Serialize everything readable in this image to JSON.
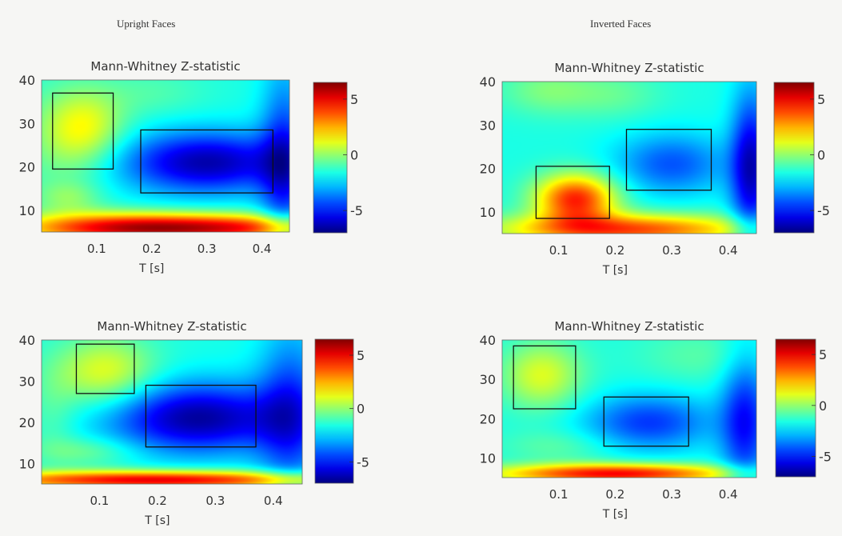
{
  "columns": [
    {
      "title": "Upright Faces"
    },
    {
      "title": "Inverted Faces"
    }
  ],
  "chart_data": [
    {
      "type": "heatmap",
      "panel": "upright-top",
      "title": "Mann-Whitney Z-statistic",
      "xlabel": "T [s]",
      "ylabel": "",
      "xlim": [
        0.0,
        0.45
      ],
      "ylim": [
        5,
        40
      ],
      "xticks": [
        0.1,
        0.2,
        0.3,
        0.4
      ],
      "xtick_labels": [
        "0.1",
        "0.2",
        "0.3",
        "0.4"
      ],
      "yticks": [
        10,
        20,
        30,
        40
      ],
      "ytick_labels": [
        "10",
        "20",
        "30",
        "40"
      ],
      "colorbar": {
        "range": [
          -7,
          6.5
        ],
        "ticks": [
          5,
          0,
          -5
        ],
        "tick_labels": [
          "5",
          "0",
          "-5"
        ]
      },
      "rois": [
        {
          "t0": 0.02,
          "t1": 0.13,
          "f0": 19.5,
          "f1": 37
        },
        {
          "t0": 0.18,
          "t1": 0.42,
          "f0": 14,
          "f1": 28.5
        }
      ],
      "blobs": [
        {
          "t": 0.08,
          "f": 29,
          "st": 0.05,
          "sf": 6,
          "a": 2.5
        },
        {
          "t": 0.03,
          "f": 25,
          "st": 0.06,
          "sf": 10,
          "a": 1.0
        },
        {
          "t": 0.3,
          "f": 21,
          "st": 0.11,
          "sf": 5,
          "a": -4.8
        },
        {
          "t": 0.44,
          "f": 20,
          "st": 0.03,
          "sf": 15,
          "a": -3.2
        },
        {
          "t": 0.05,
          "f": 13,
          "st": 0.04,
          "sf": 2.5,
          "a": 1.2
        },
        {
          "t": 0.15,
          "f": 6,
          "st": 0.14,
          "sf": 2.4,
          "a": 6.5
        },
        {
          "t": 0.38,
          "f": 6,
          "st": 0.13,
          "sf": 2.2,
          "a": 4.5
        },
        {
          "t": 0.2,
          "f": 37,
          "st": 0.07,
          "sf": 4,
          "a": 0.7
        }
      ]
    },
    {
      "type": "heatmap",
      "panel": "inverted-top",
      "title": "Mann-Whitney Z-statistic",
      "xlabel": "T [s]",
      "ylabel": "",
      "xlim": [
        0.0,
        0.45
      ],
      "ylim": [
        5,
        40
      ],
      "xticks": [
        0.1,
        0.2,
        0.3,
        0.4
      ],
      "xtick_labels": [
        "0.1",
        "0.2",
        "0.3",
        "0.4"
      ],
      "yticks": [
        10,
        20,
        30,
        40
      ],
      "ytick_labels": [
        "10",
        "20",
        "30",
        "40"
      ],
      "colorbar": {
        "range": [
          -7,
          6.5
        ],
        "ticks": [
          5,
          0,
          -5
        ],
        "tick_labels": [
          "5",
          "0",
          "-5"
        ]
      },
      "rois": [
        {
          "t0": 0.06,
          "t1": 0.19,
          "f0": 8.5,
          "f1": 20.5
        },
        {
          "t0": 0.22,
          "t1": 0.37,
          "f0": 15,
          "f1": 29
        }
      ],
      "blobs": [
        {
          "t": 0.13,
          "f": 13,
          "st": 0.05,
          "sf": 4,
          "a": 6.0
        },
        {
          "t": 0.22,
          "f": 6,
          "st": 0.16,
          "sf": 2.5,
          "a": 5.5
        },
        {
          "t": 0.3,
          "f": 21,
          "st": 0.07,
          "sf": 5,
          "a": -2.6
        },
        {
          "t": 0.44,
          "f": 20,
          "st": 0.025,
          "sf": 12,
          "a": -4.5
        },
        {
          "t": 0.08,
          "f": 38,
          "st": 0.06,
          "sf": 4,
          "a": 1.3
        },
        {
          "t": 0.2,
          "f": 37,
          "st": 0.06,
          "sf": 4,
          "a": 0.9
        }
      ]
    },
    {
      "type": "heatmap",
      "panel": "upright-bottom",
      "title": "Mann-Whitney Z-statistic",
      "xlabel": "T [s]",
      "ylabel": "",
      "xlim": [
        0.0,
        0.45
      ],
      "ylim": [
        5,
        40
      ],
      "xticks": [
        0.1,
        0.2,
        0.3,
        0.4
      ],
      "xtick_labels": [
        "0.1",
        "0.2",
        "0.3",
        "0.4"
      ],
      "yticks": [
        10,
        20,
        30,
        40
      ],
      "ytick_labels": [
        "10",
        "20",
        "30",
        "40"
      ],
      "colorbar": {
        "range": [
          -7,
          6.5
        ],
        "ticks": [
          5,
          0,
          -5
        ],
        "tick_labels": [
          "5",
          "0",
          "-5"
        ]
      },
      "rois": [
        {
          "t0": 0.06,
          "t1": 0.16,
          "f0": 27,
          "f1": 39
        },
        {
          "t0": 0.18,
          "t1": 0.37,
          "f0": 14,
          "f1": 29
        }
      ],
      "blobs": [
        {
          "t": 0.11,
          "f": 32,
          "st": 0.06,
          "sf": 6,
          "a": 2.8
        },
        {
          "t": 0.27,
          "f": 21,
          "st": 0.11,
          "sf": 6,
          "a": -5.0
        },
        {
          "t": 0.43,
          "f": 22,
          "st": 0.04,
          "sf": 14,
          "a": -3.0
        },
        {
          "t": 0.08,
          "f": 13,
          "st": 0.06,
          "sf": 2.5,
          "a": 1.3
        },
        {
          "t": 0.2,
          "f": 6,
          "st": 0.22,
          "sf": 1.6,
          "a": 6.8
        },
        {
          "t": 0.02,
          "f": 22,
          "st": 0.03,
          "sf": 8,
          "a": 0.8
        }
      ]
    },
    {
      "type": "heatmap",
      "panel": "inverted-bottom",
      "title": "Mann-Whitney Z-statistic",
      "xlabel": "T [s]",
      "ylabel": "",
      "xlim": [
        0.0,
        0.45
      ],
      "ylim": [
        5,
        40
      ],
      "xticks": [
        0.1,
        0.2,
        0.3,
        0.4
      ],
      "xtick_labels": [
        "0.1",
        "0.2",
        "0.3",
        "0.4"
      ],
      "yticks": [
        10,
        20,
        30,
        40
      ],
      "ytick_labels": [
        "10",
        "20",
        "30",
        "40"
      ],
      "colorbar": {
        "range": [
          -7,
          6.5
        ],
        "ticks": [
          5,
          0,
          -5
        ],
        "tick_labels": [
          "5",
          "0",
          "-5"
        ]
      },
      "rois": [
        {
          "t0": 0.02,
          "t1": 0.13,
          "f0": 22.5,
          "f1": 38.5
        },
        {
          "t0": 0.18,
          "t1": 0.33,
          "f0": 13,
          "f1": 25.5
        }
      ],
      "blobs": [
        {
          "t": 0.07,
          "f": 31,
          "st": 0.05,
          "sf": 6,
          "a": 2.6
        },
        {
          "t": 0.26,
          "f": 19,
          "st": 0.08,
          "sf": 5,
          "a": -3.0
        },
        {
          "t": 0.43,
          "f": 19,
          "st": 0.03,
          "sf": 12,
          "a": -3.5
        },
        {
          "t": 0.2,
          "f": 6,
          "st": 0.15,
          "sf": 1.8,
          "a": 6.5
        },
        {
          "t": 0.35,
          "f": 36,
          "st": 0.08,
          "sf": 5,
          "a": 0.8
        },
        {
          "t": 0.1,
          "f": 13,
          "st": 0.07,
          "sf": 3,
          "a": 0.9
        }
      ]
    }
  ]
}
